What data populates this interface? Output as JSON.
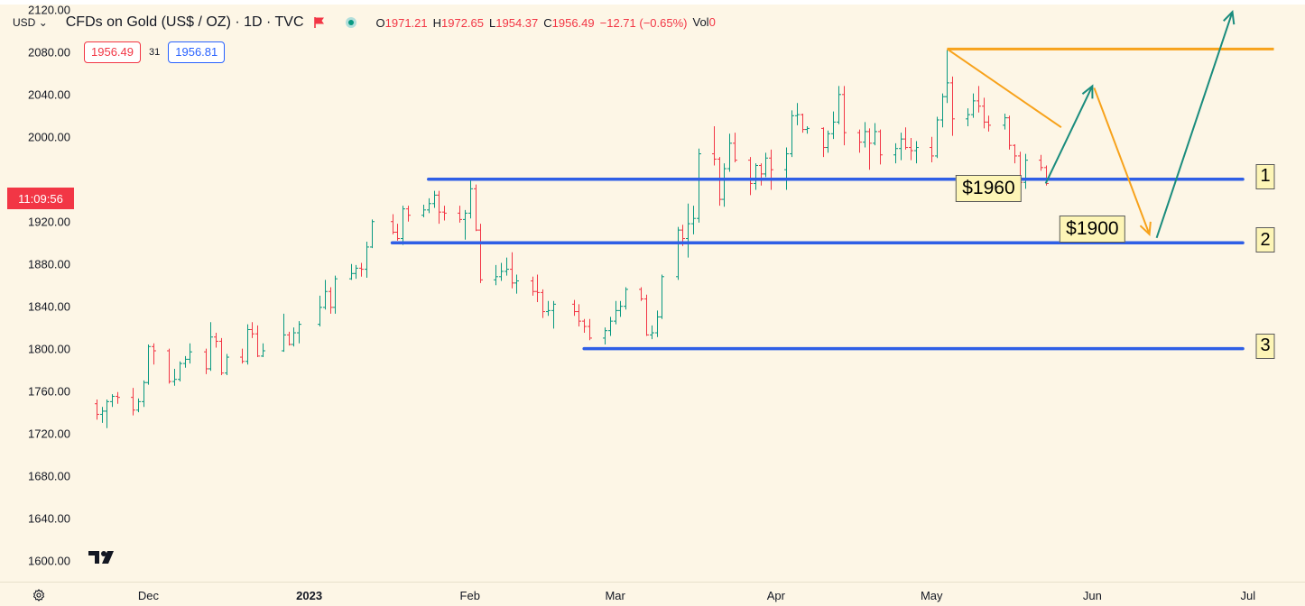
{
  "header": {
    "currency": "USD",
    "title": "CFDs on Gold (US$ / OZ) · 1D · TVC",
    "ohlc": {
      "open_label": "O",
      "open": "1971.21",
      "high_label": "H",
      "high": "1972.65",
      "low_label": "L",
      "low": "1954.37",
      "close_label": "C",
      "close": "1956.49",
      "change": "−12.71 (−0.65%)",
      "volume_label": "Vol",
      "volume": "0"
    },
    "bid": "1956.49",
    "spread": "31",
    "ask": "1956.81"
  },
  "last_price_countdown": "11:09:56",
  "colors": {
    "background": "#fdf6e6",
    "up": "#089981",
    "down": "#f23645",
    "support_line": "#2f5fe6",
    "trend_line": "#f7a21b",
    "projection_up": "#1a8c7d"
  },
  "icons": {
    "settings": "settings-gear-icon",
    "logo": "tradingview-logo-icon",
    "flag": "red-flag-icon"
  },
  "chart_data": {
    "type": "candlestick",
    "title": "CFDs on Gold (US$ / OZ) · 1D · TVC",
    "ylim": [
      1580,
      2125
    ],
    "y_ticks": [
      "1600.00",
      "1640.00",
      "1680.00",
      "1720.00",
      "1760.00",
      "1800.00",
      "1840.00",
      "1880.00",
      "1920.00",
      "2000.00",
      "2040.00",
      "2080.00",
      "2120.00"
    ],
    "x_ticks": [
      {
        "label": "Dec",
        "date": "2022-12-01"
      },
      {
        "label": "2023",
        "date": "2023-01-01",
        "bold": true
      },
      {
        "label": "Feb",
        "date": "2023-02-01"
      },
      {
        "label": "Mar",
        "date": "2023-03-01"
      },
      {
        "label": "Apr",
        "date": "2023-04-01"
      },
      {
        "label": "May",
        "date": "2023-05-01"
      },
      {
        "label": "Jun",
        "date": "2023-06-01"
      },
      {
        "label": "Jul",
        "date": "2023-07-01"
      }
    ],
    "x_range": [
      "2022-11-17",
      "2023-07-12"
    ],
    "candles": [
      [
        "2022-11-21",
        1748,
        1752,
        1733,
        1738
      ],
      [
        "2022-11-22",
        1738,
        1745,
        1730,
        1741
      ],
      [
        "2022-11-23",
        1741,
        1752,
        1725,
        1750
      ],
      [
        "2022-11-24",
        1750,
        1757,
        1745,
        1755
      ],
      [
        "2022-11-25",
        1755,
        1759,
        1748,
        1754
      ],
      [
        "2022-11-28",
        1754,
        1763,
        1737,
        1742
      ],
      [
        "2022-11-29",
        1742,
        1753,
        1740,
        1750
      ],
      [
        "2022-11-30",
        1750,
        1770,
        1745,
        1768
      ],
      [
        "2022-12-01",
        1768,
        1804,
        1766,
        1802
      ],
      [
        "2022-12-02",
        1802,
        1805,
        1785,
        1798
      ],
      [
        "2022-12-05",
        1798,
        1800,
        1767,
        1769
      ],
      [
        "2022-12-06",
        1769,
        1781,
        1765,
        1771
      ],
      [
        "2022-12-07",
        1771,
        1788,
        1769,
        1786
      ],
      [
        "2022-12-08",
        1786,
        1793,
        1782,
        1790
      ],
      [
        "2022-12-09",
        1790,
        1805,
        1786,
        1797
      ],
      [
        "2022-12-12",
        1797,
        1800,
        1776,
        1781
      ],
      [
        "2022-12-13",
        1781,
        1825,
        1779,
        1811
      ],
      [
        "2022-12-14",
        1811,
        1815,
        1801,
        1807
      ],
      [
        "2022-12-15",
        1807,
        1810,
        1775,
        1777
      ],
      [
        "2022-12-16",
        1777,
        1795,
        1775,
        1792
      ],
      [
        "2022-12-19",
        1792,
        1800,
        1786,
        1788
      ],
      [
        "2022-12-20",
        1788,
        1823,
        1785,
        1818
      ],
      [
        "2022-12-21",
        1818,
        1825,
        1810,
        1814
      ],
      [
        "2022-12-22",
        1814,
        1822,
        1792,
        1793
      ],
      [
        "2022-12-23",
        1793,
        1805,
        1792,
        1798
      ],
      [
        "2022-12-27",
        1798,
        1833,
        1797,
        1813
      ],
      [
        "2022-12-28",
        1813,
        1816,
        1803,
        1804
      ],
      [
        "2022-12-29",
        1804,
        1820,
        1802,
        1815
      ],
      [
        "2022-12-30",
        1815,
        1826,
        1805,
        1823
      ],
      [
        "2023-01-03",
        1823,
        1850,
        1821,
        1839
      ],
      [
        "2023-01-04",
        1839,
        1865,
        1837,
        1854
      ],
      [
        "2023-01-05",
        1854,
        1858,
        1833,
        1839
      ],
      [
        "2023-01-06",
        1839,
        1869,
        1833,
        1866
      ],
      [
        "2023-01-09",
        1866,
        1880,
        1865,
        1871
      ],
      [
        "2023-01-10",
        1871,
        1879,
        1866,
        1876
      ],
      [
        "2023-01-11",
        1876,
        1881,
        1868,
        1875
      ],
      [
        "2023-01-12",
        1875,
        1901,
        1867,
        1896
      ],
      [
        "2023-01-13",
        1896,
        1922,
        1895,
        1920
      ],
      [
        "2023-01-17",
        1920,
        1927,
        1908,
        1910
      ],
      [
        "2023-01-18",
        1910,
        1918,
        1902,
        1904
      ],
      [
        "2023-01-19",
        1904,
        1935,
        1898,
        1932
      ],
      [
        "2023-01-20",
        1932,
        1935,
        1920,
        1926
      ],
      [
        "2023-01-23",
        1926,
        1936,
        1924,
        1931
      ],
      [
        "2023-01-24",
        1931,
        1942,
        1928,
        1937
      ],
      [
        "2023-01-25",
        1937,
        1949,
        1933,
        1945
      ],
      [
        "2023-01-26",
        1945,
        1949,
        1918,
        1929
      ],
      [
        "2023-01-27",
        1929,
        1935,
        1921,
        1928
      ],
      [
        "2023-01-30",
        1928,
        1935,
        1919,
        1922
      ],
      [
        "2023-01-31",
        1922,
        1931,
        1903,
        1928
      ],
      [
        "2023-02-01",
        1928,
        1959,
        1923,
        1951
      ],
      [
        "2023-02-02",
        1951,
        1955,
        1911,
        1912
      ],
      [
        "2023-02-03",
        1912,
        1918,
        1862,
        1865
      ],
      [
        "2023-02-06",
        1865,
        1879,
        1860,
        1868
      ],
      [
        "2023-02-07",
        1868,
        1881,
        1864,
        1873
      ],
      [
        "2023-02-08",
        1873,
        1886,
        1869,
        1875
      ],
      [
        "2023-02-09",
        1875,
        1891,
        1857,
        1862
      ],
      [
        "2023-02-10",
        1862,
        1870,
        1852,
        1864
      ],
      [
        "2023-02-13",
        1864,
        1868,
        1850,
        1854
      ],
      [
        "2023-02-14",
        1854,
        1870,
        1844,
        1853
      ],
      [
        "2023-02-15",
        1853,
        1856,
        1829,
        1835
      ],
      [
        "2023-02-16",
        1835,
        1845,
        1831,
        1836
      ],
      [
        "2023-02-17",
        1836,
        1845,
        1819,
        1842
      ],
      [
        "2023-02-21",
        1842,
        1846,
        1831,
        1835
      ],
      [
        "2023-02-22",
        1835,
        1842,
        1821,
        1826
      ],
      [
        "2023-02-23",
        1826,
        1828,
        1815,
        1821
      ],
      [
        "2023-02-24",
        1821,
        1828,
        1808,
        1810
      ],
      [
        "2023-02-27",
        1810,
        1820,
        1804,
        1817
      ],
      [
        "2023-02-28",
        1817,
        1830,
        1812,
        1826
      ],
      [
        "2023-03-01",
        1826,
        1845,
        1823,
        1836
      ],
      [
        "2023-03-02",
        1836,
        1845,
        1830,
        1840
      ],
      [
        "2023-03-03",
        1840,
        1858,
        1837,
        1856
      ],
      [
        "2023-03-06",
        1856,
        1858,
        1845,
        1847
      ],
      [
        "2023-03-07",
        1847,
        1851,
        1812,
        1813
      ],
      [
        "2023-03-08",
        1813,
        1822,
        1809,
        1815
      ],
      [
        "2023-03-09",
        1815,
        1836,
        1811,
        1830
      ],
      [
        "2023-03-10",
        1830,
        1870,
        1828,
        1868
      ],
      [
        "2023-03-13",
        1868,
        1915,
        1865,
        1912
      ],
      [
        "2023-03-14",
        1912,
        1917,
        1897,
        1904
      ],
      [
        "2023-03-15",
        1904,
        1937,
        1886,
        1918
      ],
      [
        "2023-03-16",
        1918,
        1935,
        1908,
        1923
      ],
      [
        "2023-03-17",
        1923,
        1989,
        1919,
        1984
      ],
      [
        "2023-03-20",
        1984,
        2010,
        1973,
        1979
      ],
      [
        "2023-03-21",
        1979,
        1981,
        1935,
        1941
      ],
      [
        "2023-03-22",
        1941,
        1975,
        1934,
        1970
      ],
      [
        "2023-03-23",
        1970,
        2003,
        1967,
        1994
      ],
      [
        "2023-03-24",
        1994,
        2004,
        1976,
        1978
      ],
      [
        "2023-03-27",
        1978,
        1981,
        1945,
        1956
      ],
      [
        "2023-03-28",
        1956,
        1975,
        1950,
        1973
      ],
      [
        "2023-03-29",
        1973,
        1975,
        1954,
        1965
      ],
      [
        "2023-03-30",
        1965,
        1985,
        1962,
        1980
      ],
      [
        "2023-03-31",
        1980,
        1988,
        1950,
        1969
      ],
      [
        "2023-04-03",
        1969,
        1990,
        1950,
        1984
      ],
      [
        "2023-04-04",
        1984,
        2025,
        1981,
        2020
      ],
      [
        "2023-04-05",
        2020,
        2032,
        2011,
        2021
      ],
      [
        "2023-04-06",
        2021,
        2022,
        2004,
        2007
      ],
      [
        "2023-04-07",
        2007,
        2010,
        2003,
        2008
      ],
      [
        "2023-04-10",
        2008,
        2009,
        1981,
        1990
      ],
      [
        "2023-04-11",
        1990,
        2006,
        1985,
        2003
      ],
      [
        "2023-04-12",
        2003,
        2024,
        1998,
        2014
      ],
      [
        "2023-04-13",
        2014,
        2048,
        2012,
        2040
      ],
      [
        "2023-04-14",
        2040,
        2048,
        1992,
        2004
      ],
      [
        "2023-04-17",
        2004,
        2007,
        1985,
        1995
      ],
      [
        "2023-04-18",
        1995,
        2014,
        1990,
        2005
      ],
      [
        "2023-04-19",
        2005,
        2008,
        1969,
        1994
      ],
      [
        "2023-04-20",
        1994,
        2013,
        1992,
        2005
      ],
      [
        "2023-04-21",
        2005,
        2007,
        1974,
        1983
      ],
      [
        "2023-04-24",
        1983,
        1994,
        1975,
        1989
      ],
      [
        "2023-04-25",
        1989,
        2004,
        1978,
        1998
      ],
      [
        "2023-04-26",
        1998,
        2009,
        1988,
        1990
      ],
      [
        "2023-04-27",
        1990,
        1999,
        1978,
        1987
      ],
      [
        "2023-04-28",
        1987,
        1996,
        1975,
        1990
      ],
      [
        "2023-05-01",
        1990,
        2000,
        1976,
        1982
      ],
      [
        "2023-05-02",
        1982,
        2019,
        1980,
        2016
      ],
      [
        "2023-05-03",
        2016,
        2041,
        2009,
        2038
      ],
      [
        "2023-05-04",
        2038,
        2082,
        2032,
        2051
      ],
      [
        "2023-05-05",
        2051,
        2057,
        2001,
        2017
      ],
      [
        "2023-05-08",
        2017,
        2027,
        2010,
        2021
      ],
      [
        "2023-05-09",
        2021,
        2041,
        2018,
        2034
      ],
      [
        "2023-05-10",
        2034,
        2048,
        2023,
        2029
      ],
      [
        "2023-05-11",
        2029,
        2037,
        2008,
        2014
      ],
      [
        "2023-05-12",
        2014,
        2020,
        2005,
        2011
      ],
      [
        "2023-05-15",
        2011,
        2022,
        2007,
        2018
      ],
      [
        "2023-05-16",
        2018,
        2020,
        1988,
        1992
      ],
      [
        "2023-05-17",
        1992,
        1993,
        1975,
        1982
      ],
      [
        "2023-05-18",
        1982,
        1986,
        1955,
        1957
      ],
      [
        "2023-05-19",
        1957,
        1984,
        1951,
        1978
      ],
      [
        "2023-05-22",
        1978,
        1983,
        1968,
        1971
      ],
      [
        "2023-05-23",
        1971,
        1973,
        1954,
        1956
      ]
    ],
    "support_levels": [
      {
        "label": "1",
        "price": 1960,
        "start": "2023-01-24",
        "end": "2023-06-30"
      },
      {
        "label": "2",
        "price": 1900,
        "start": "2023-01-17",
        "end": "2023-06-30"
      },
      {
        "label": "3",
        "price": 1800,
        "start": "2023-02-23",
        "end": "2023-06-30"
      }
    ],
    "resistance_line": {
      "price": 2083,
      "start": "2023-05-04",
      "end": "2023-07-06"
    },
    "trend_line": {
      "start": [
        "2023-05-04",
        2083
      ],
      "end": [
        "2023-05-26",
        2009
      ]
    },
    "projection": [
      [
        "2023-05-23",
        1956
      ],
      [
        "2023-06-01",
        2048
      ],
      [
        "2023-06-12",
        1908
      ],
      [
        "2023-06-28",
        2118
      ]
    ],
    "annotations": [
      {
        "text": "$1960",
        "date": "2023-05-12",
        "price": 1951
      },
      {
        "text": "$1900",
        "date": "2023-06-01",
        "price": 1913
      }
    ]
  }
}
